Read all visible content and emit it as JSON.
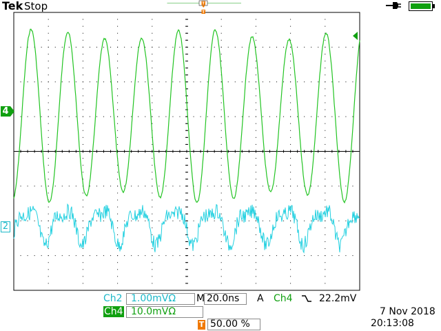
{
  "header": {
    "brand": "Tek",
    "acq_state": "Stop"
  },
  "channels": {
    "ch4_marker": "4",
    "ch2_marker": "2",
    "trigger_marker": "T"
  },
  "readouts": {
    "ch2_label": "Ch2",
    "ch2_scale": "1.00mVΩ",
    "ch4_label": "Ch4",
    "ch4_scale": "10.0mVΩ",
    "timebase_label": "M",
    "timebase_value": "20.0ns",
    "trigger_mode": "A",
    "trigger_source": "Ch4",
    "trigger_slope_icon": "falling-edge-icon",
    "trigger_level": "22.2mV",
    "trigger_position_marker": "T",
    "trigger_position": "50.00 %",
    "date": "7 Nov 2018",
    "time": "20:13:08"
  },
  "colors": {
    "ch4_trace": "#22c422",
    "ch2_trace": "#22d0e0",
    "grid": "#000000",
    "trigger": "#f07800",
    "battery": "#10a010"
  }
}
